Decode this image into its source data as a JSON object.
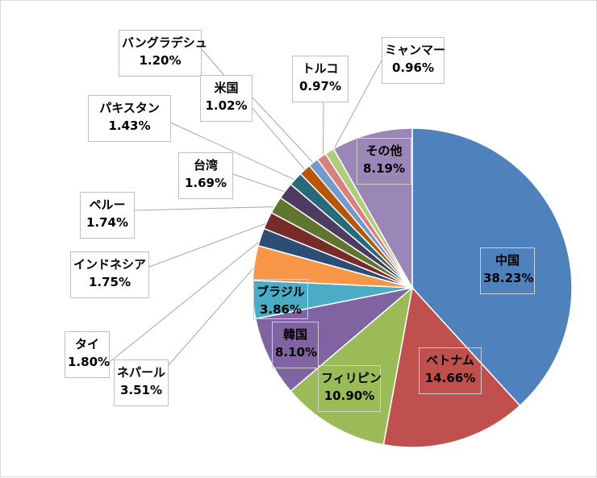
{
  "chart_data": {
    "type": "pie",
    "title": "",
    "slices": [
      {
        "name": "中国",
        "value": 38.23,
        "label": "38.23%",
        "color": "#4f81bd"
      },
      {
        "name": "ベトナム",
        "value": 14.66,
        "label": "14.66%",
        "color": "#c0504d"
      },
      {
        "name": "フィリピン",
        "value": 10.9,
        "label": "10.90%",
        "color": "#9bbb59"
      },
      {
        "name": "韓国",
        "value": 8.1,
        "label": "8.10%",
        "color": "#8064a2"
      },
      {
        "name": "ブラジル",
        "value": 3.86,
        "label": "3.86%",
        "color": "#4bacc6"
      },
      {
        "name": "ネパール",
        "value": 3.51,
        "label": "3.51%",
        "color": "#f79646"
      },
      {
        "name": "タイ",
        "value": 1.8,
        "label": "1.80%",
        "color": "#2c4d75"
      },
      {
        "name": "インドネシア",
        "value": 1.75,
        "label": "1.75%",
        "color": "#772c2a"
      },
      {
        "name": "ペルー",
        "value": 1.74,
        "label": "1.74%",
        "color": "#5f7530"
      },
      {
        "name": "台湾",
        "value": 1.69,
        "label": "1.69%",
        "color": "#4d3b62"
      },
      {
        "name": "パキスタン",
        "value": 1.43,
        "label": "1.43%",
        "color": "#276a7c"
      },
      {
        "name": "バングラデシュ",
        "value": 1.2,
        "label": "1.20%",
        "color": "#b65708"
      },
      {
        "name": "米国",
        "value": 1.02,
        "label": "1.02%",
        "color": "#729aca"
      },
      {
        "name": "トルコ",
        "value": 0.97,
        "label": "0.97%",
        "color": "#d8807d"
      },
      {
        "name": "ミャンマー",
        "value": 0.96,
        "label": "0.96%",
        "color": "#b0cd7d"
      },
      {
        "name": "その他",
        "value": 8.19,
        "label": "8.19%",
        "color": "#9b87b7"
      }
    ],
    "legend": "none",
    "data_labels": "outside with leader lines for small slices"
  }
}
